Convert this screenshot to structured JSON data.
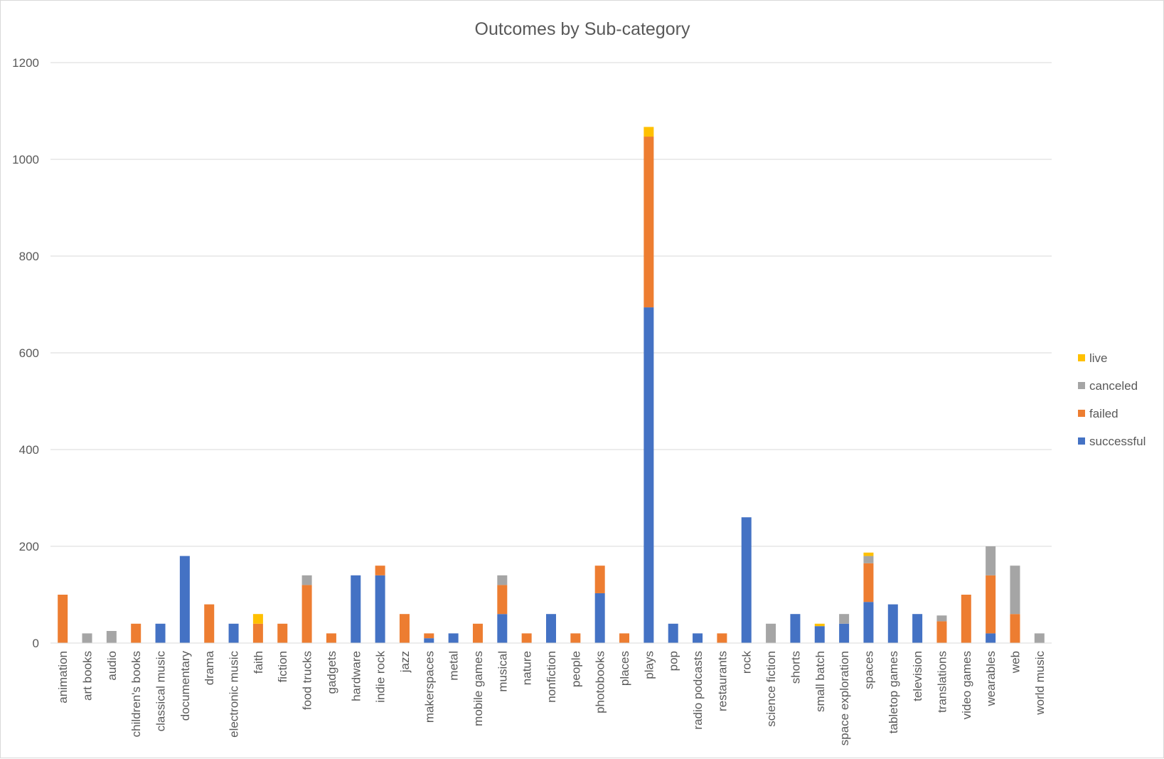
{
  "chart_data": {
    "type": "bar",
    "stacked": true,
    "title": "Outcomes by Sub-category",
    "xlabel": "",
    "ylabel": "",
    "ylim": [
      0,
      1200
    ],
    "yticks": [
      0,
      200,
      400,
      600,
      800,
      1000,
      1200
    ],
    "grid": true,
    "legend_position": "right",
    "categories": [
      "animation",
      "art books",
      "audio",
      "children's books",
      "classical music",
      "documentary",
      "drama",
      "electronic music",
      "faith",
      "fiction",
      "food trucks",
      "gadgets",
      "hardware",
      "indie rock",
      "jazz",
      "makerspaces",
      "metal",
      "mobile games",
      "musical",
      "nature",
      "nonfiction",
      "people",
      "photobooks",
      "places",
      "plays",
      "pop",
      "radio podcasts",
      "restaurants",
      "rock",
      "science fiction",
      "shorts",
      "small batch",
      "space exploration",
      "spaces",
      "tabletop games",
      "television",
      "translations",
      "video games",
      "wearables",
      "web",
      "world music"
    ],
    "series": [
      {
        "name": "successful",
        "color": "#4472c4",
        "values": [
          0,
          0,
          0,
          0,
          40,
          180,
          0,
          40,
          0,
          0,
          0,
          0,
          140,
          140,
          0,
          10,
          20,
          0,
          60,
          0,
          60,
          0,
          103,
          0,
          694,
          40,
          20,
          0,
          260,
          0,
          60,
          35,
          40,
          85,
          80,
          60,
          0,
          0,
          20,
          0,
          0
        ]
      },
      {
        "name": "failed",
        "color": "#ed7d31",
        "values": [
          100,
          0,
          0,
          40,
          0,
          0,
          80,
          0,
          40,
          40,
          120,
          20,
          0,
          20,
          60,
          10,
          0,
          40,
          60,
          20,
          0,
          20,
          57,
          20,
          353,
          0,
          0,
          20,
          0,
          0,
          0,
          0,
          0,
          80,
          0,
          0,
          45,
          100,
          120,
          60,
          0
        ]
      },
      {
        "name": "canceled",
        "color": "#a5a5a5",
        "values": [
          0,
          20,
          25,
          0,
          0,
          0,
          0,
          0,
          0,
          0,
          20,
          0,
          0,
          0,
          0,
          0,
          0,
          0,
          20,
          0,
          0,
          0,
          0,
          0,
          0,
          0,
          0,
          0,
          0,
          40,
          0,
          0,
          20,
          15,
          0,
          0,
          12,
          0,
          60,
          100,
          20
        ]
      },
      {
        "name": "live",
        "color": "#ffc000",
        "values": [
          0,
          0,
          0,
          0,
          0,
          0,
          0,
          0,
          20,
          0,
          0,
          0,
          0,
          0,
          0,
          0,
          0,
          0,
          0,
          0,
          0,
          0,
          0,
          0,
          20,
          0,
          0,
          0,
          0,
          0,
          0,
          5,
          0,
          7,
          0,
          0,
          0,
          0,
          0,
          0,
          0
        ]
      }
    ],
    "legend_order": [
      "live",
      "canceled",
      "failed",
      "successful"
    ]
  }
}
